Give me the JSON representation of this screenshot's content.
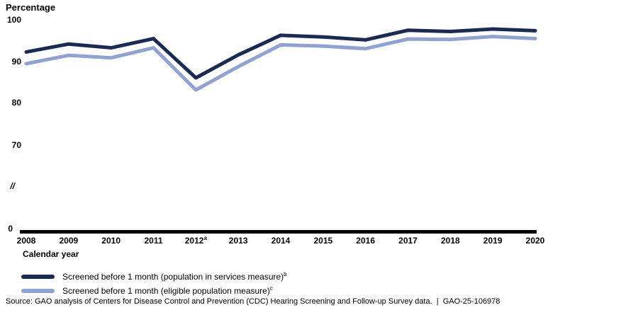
{
  "chart": {
    "y_axis_title": "Percentage",
    "x_axis_title": "Calendar year"
  },
  "chart_data": {
    "type": "line",
    "title": "",
    "ylabel": "Percentage",
    "xlabel": "Calendar year",
    "ylim": [
      0,
      100
    ],
    "y_axis_break": true,
    "y_tick_labels": [
      "100",
      "90",
      "80",
      "70",
      "//",
      "0"
    ],
    "grid": false,
    "legend_position": "bottom-left",
    "categories": [
      "2008",
      "2009",
      "2010",
      "2011",
      "2012",
      "2013",
      "2014",
      "2015",
      "2016",
      "2017",
      "2018",
      "2019",
      "2020"
    ],
    "x_footnote_superscripts": {
      "2012": "a"
    },
    "series": [
      {
        "name": "Screened before 1 month (population in services measure)",
        "footnote_superscript": "b",
        "color": "#1b2a52",
        "values": [
          92.3,
          94.2,
          93.3,
          95.5,
          86.1,
          91.6,
          96.3,
          95.9,
          95.2,
          97.5,
          97.2,
          97.8,
          97.4
        ]
      },
      {
        "name": "Screened before 1 month (eligible population measure)",
        "footnote_superscript": "c",
        "color": "#8fa2d1",
        "values": [
          89.5,
          91.5,
          90.9,
          93.3,
          83.2,
          88.8,
          94.0,
          93.7,
          93.1,
          95.4,
          95.3,
          96.0,
          95.5
        ]
      }
    ]
  },
  "source_note": "Source: GAO analysis of Centers for Disease Control and Prevention (CDC) Hearing Screening and Follow-up Survey data.  |  GAO-25-106978"
}
